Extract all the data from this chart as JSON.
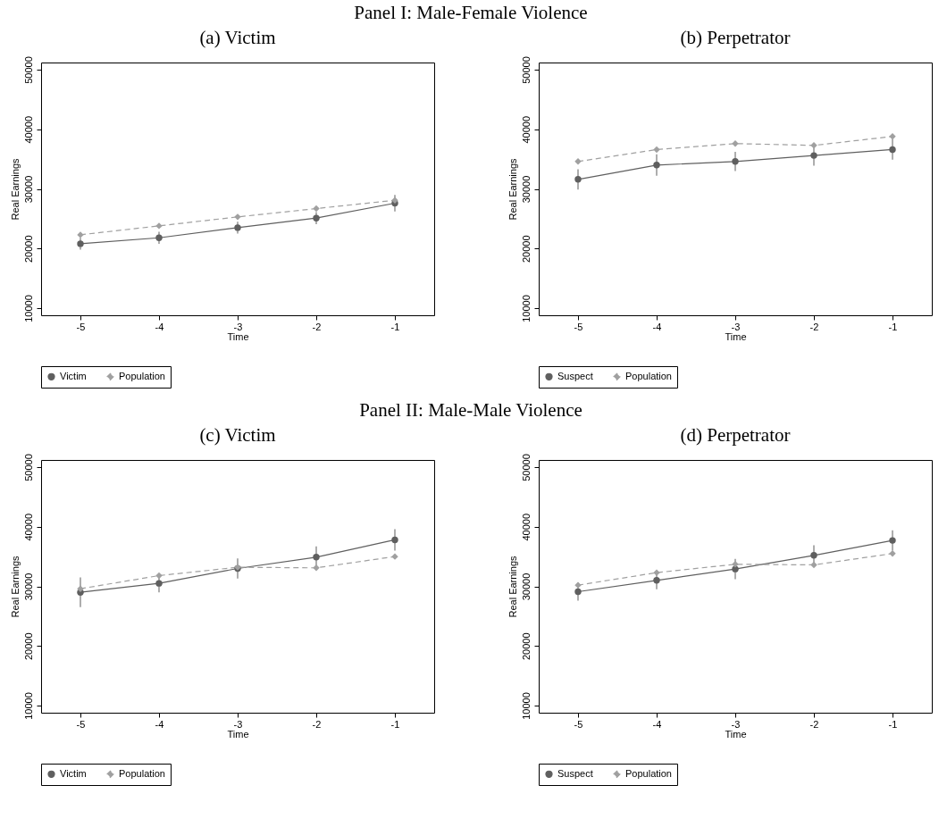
{
  "chart_data": [
    {
      "type": "line",
      "title": "(a) Victim",
      "annotations": [
        "Panel I: Male-Female Violence"
      ],
      "xlabel": "Time",
      "ylabel": "Real Earnings",
      "x": [
        -5,
        -4,
        -3,
        -2,
        -1
      ],
      "xlim": [
        -5.5,
        -0.5
      ],
      "xticks": [
        -5,
        -4,
        -3,
        -2,
        -1
      ],
      "ylim": [
        8800,
        51200
      ],
      "yticks": [
        10000,
        20000,
        30000,
        40000,
        50000
      ],
      "legend": "bottom",
      "series": [
        {
          "name": "Victim",
          "color": "#5f5f5f",
          "marker": "circle",
          "line_style": "solid",
          "values": [
            20800,
            21800,
            23500,
            25100,
            27600
          ],
          "errors": [
            1000,
            1000,
            1000,
            1000,
            1400
          ]
        },
        {
          "name": "Population",
          "color": "#a0a0a0",
          "marker": "diamond",
          "line_style": "dashed",
          "values": [
            22300,
            23800,
            25300,
            26700,
            28100
          ]
        }
      ]
    },
    {
      "type": "line",
      "title": "(b) Perpetrator",
      "xlabel": "Time",
      "ylabel": "Real Earnings",
      "x": [
        -5,
        -4,
        -3,
        -2,
        -1
      ],
      "xlim": [
        -5.5,
        -0.5
      ],
      "xticks": [
        -5,
        -4,
        -3,
        -2,
        -1
      ],
      "ylim": [
        8800,
        51200
      ],
      "yticks": [
        10000,
        20000,
        30000,
        40000,
        50000
      ],
      "legend": "bottom",
      "series": [
        {
          "name": "Suspect",
          "color": "#5f5f5f",
          "marker": "circle",
          "line_style": "solid",
          "values": [
            31600,
            34000,
            34600,
            35600,
            36600
          ],
          "errors": [
            1700,
            1800,
            1600,
            1700,
            1700
          ]
        },
        {
          "name": "Population",
          "color": "#a0a0a0",
          "marker": "diamond",
          "line_style": "dashed",
          "values": [
            34600,
            36600,
            37600,
            37300,
            38800
          ]
        }
      ]
    },
    {
      "type": "line",
      "title": "(c) Victim",
      "annotations": [
        "Panel II: Male-Male Violence"
      ],
      "xlabel": "Time",
      "ylabel": "Real Earnings",
      "x": [
        -5,
        -4,
        -3,
        -2,
        -1
      ],
      "xlim": [
        -5.5,
        -0.5
      ],
      "xticks": [
        -5,
        -4,
        -3,
        -2,
        -1
      ],
      "ylim": [
        8800,
        51200
      ],
      "yticks": [
        10000,
        20000,
        30000,
        40000,
        50000
      ],
      "legend": "bottom",
      "series": [
        {
          "name": "Victim",
          "color": "#5f5f5f",
          "marker": "circle",
          "line_style": "solid",
          "values": [
            29000,
            30500,
            33000,
            34900,
            37800
          ],
          "errors": [
            2500,
            1500,
            1700,
            1800,
            1800
          ]
        },
        {
          "name": "Population",
          "color": "#a0a0a0",
          "marker": "diamond",
          "line_style": "dashed",
          "values": [
            29600,
            31800,
            33200,
            33100,
            35000
          ]
        }
      ]
    },
    {
      "type": "line",
      "title": "(d) Perpetrator",
      "xlabel": "Time",
      "ylabel": "Real Earnings",
      "x": [
        -5,
        -4,
        -3,
        -2,
        -1
      ],
      "xlim": [
        -5.5,
        -0.5
      ],
      "xticks": [
        -5,
        -4,
        -3,
        -2,
        -1
      ],
      "ylim": [
        8800,
        51200
      ],
      "yticks": [
        10000,
        20000,
        30000,
        40000,
        50000
      ],
      "legend": "bottom",
      "series": [
        {
          "name": "Suspect",
          "color": "#5f5f5f",
          "marker": "circle",
          "line_style": "solid",
          "values": [
            29100,
            31000,
            32900,
            35200,
            37700
          ],
          "errors": [
            1500,
            1500,
            1700,
            1700,
            1700
          ]
        },
        {
          "name": "Population",
          "color": "#a0a0a0",
          "marker": "diamond",
          "line_style": "dashed",
          "values": [
            30200,
            32300,
            33700,
            33600,
            35500
          ]
        }
      ]
    }
  ]
}
